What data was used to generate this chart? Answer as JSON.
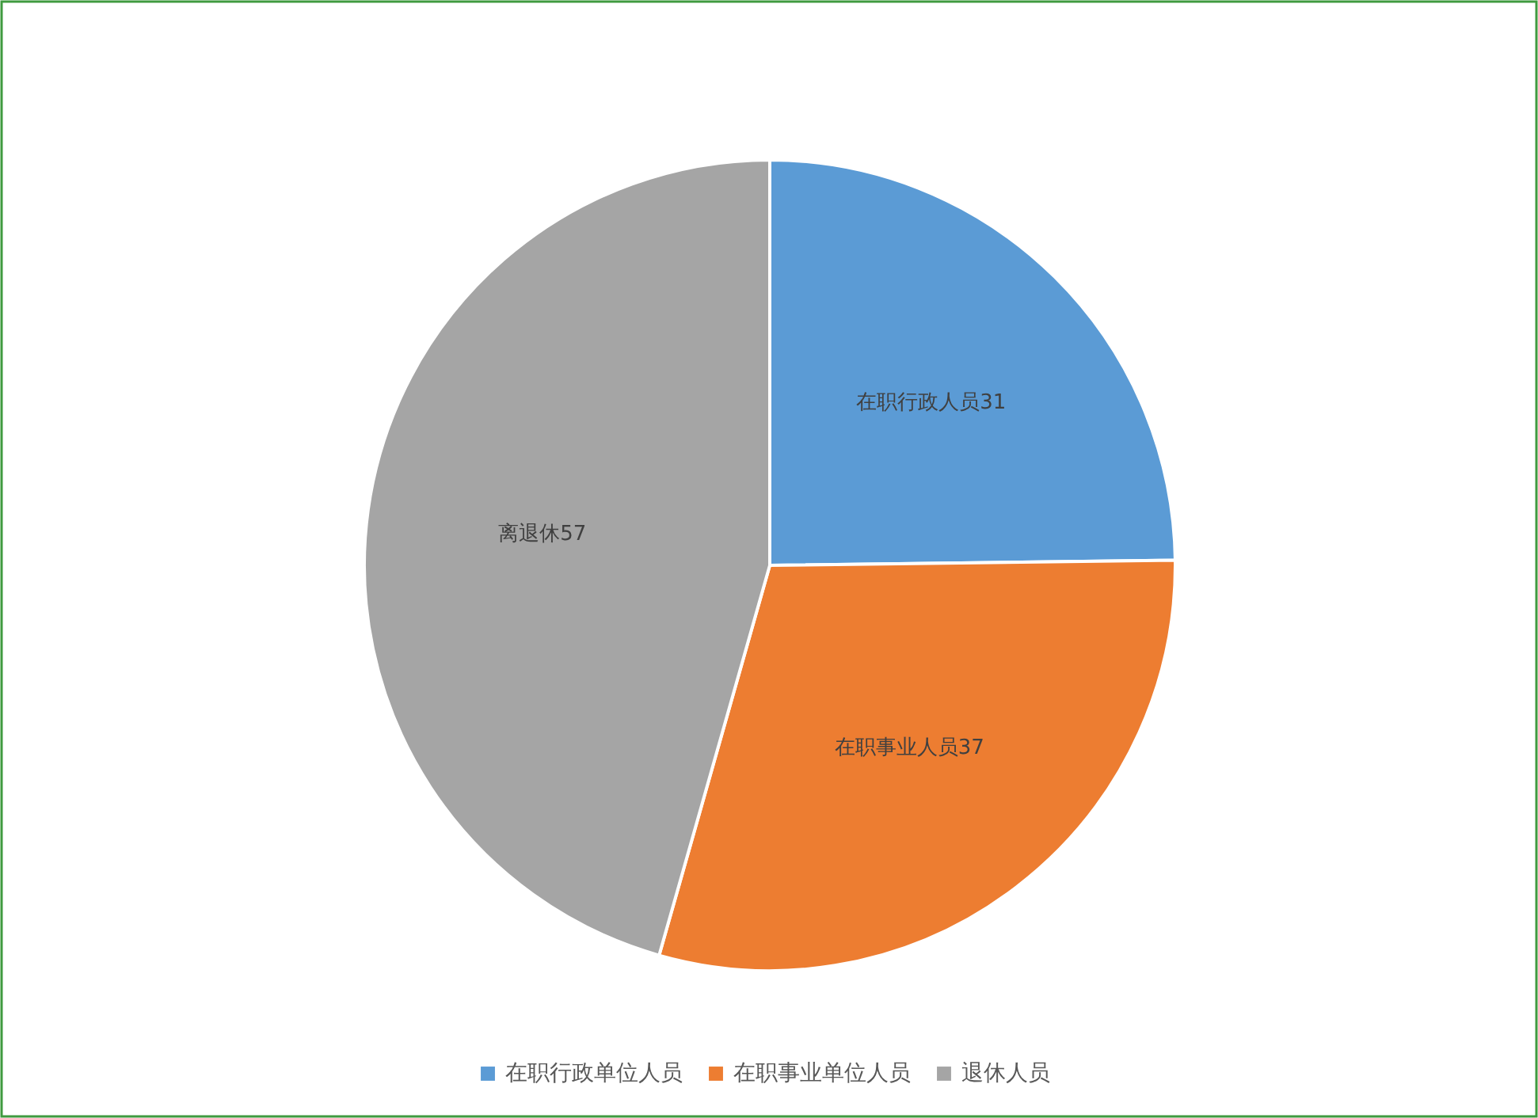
{
  "chart_data": {
    "type": "pie",
    "categories": [
      "在职行政单位人员",
      "在职事业单位人员",
      "退休人员"
    ],
    "values": [
      31,
      37,
      57
    ],
    "colors": [
      "#5b9bd5",
      "#ed7d31",
      "#a5a5a5"
    ],
    "value_labels": [
      "在职行政人员31",
      "在职事业人员37",
      "离退休57"
    ],
    "legend": "bottom"
  }
}
